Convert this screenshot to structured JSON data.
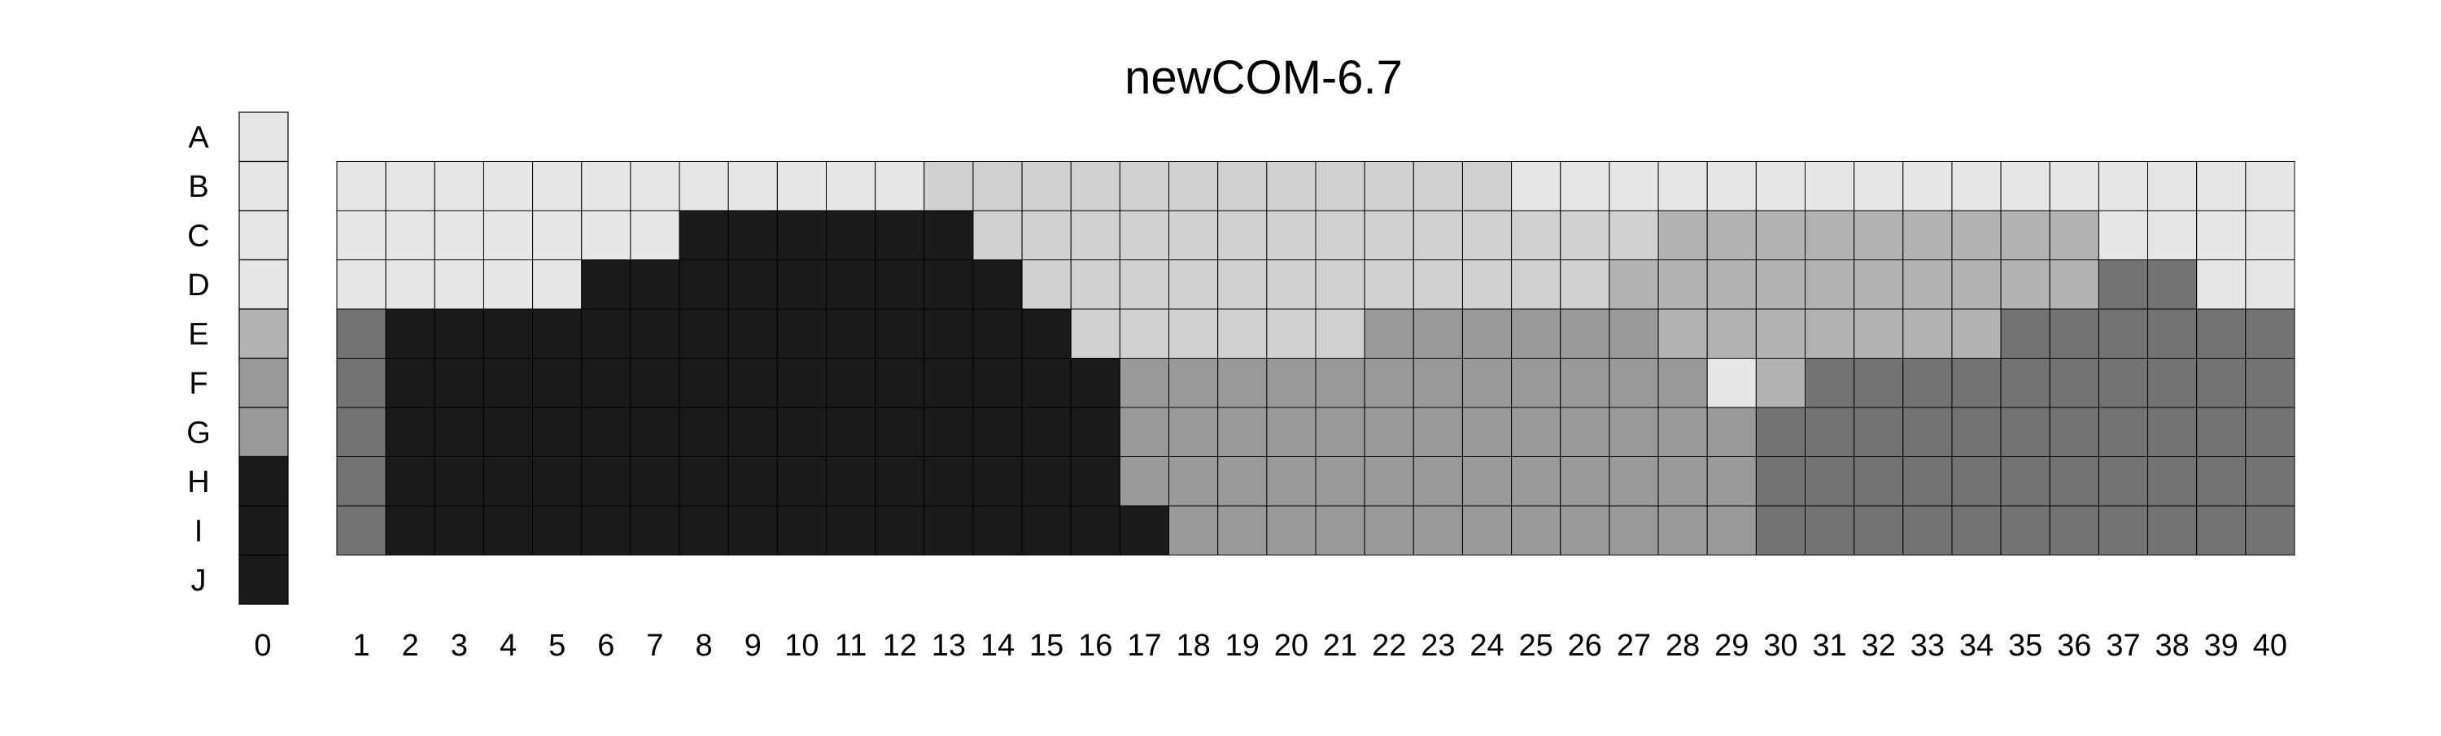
{
  "chart_data": {
    "type": "heatmap",
    "title": "newCOM-6.7",
    "row_labels": [
      "A",
      "B",
      "C",
      "D",
      "E",
      "F",
      "G",
      "H",
      "I",
      "J"
    ],
    "column_labels": [
      "1",
      "2",
      "3",
      "4",
      "5",
      "6",
      "7",
      "8",
      "9",
      "10",
      "11",
      "12",
      "13",
      "14",
      "15",
      "16",
      "17",
      "18",
      "19",
      "20",
      "21",
      "22",
      "23",
      "24",
      "25",
      "26",
      "27",
      "28",
      "29",
      "30",
      "31",
      "32",
      "33",
      "34",
      "35",
      "36",
      "37",
      "38",
      "39",
      "40"
    ],
    "key_column_label": "0",
    "key_column_values": [
      1,
      1,
      1,
      1,
      2,
      3,
      3,
      5,
      5,
      5
    ],
    "palette": {
      "1": "#e6e6e6",
      "2": "#b3b3b3",
      "3": "#999999",
      "4": "#737373",
      "5": "#1a1a1a",
      "6": "#d1d1d1"
    },
    "matrix_rows": [
      "B",
      "C",
      "D",
      "E",
      "F",
      "G",
      "H",
      "I"
    ],
    "values": [
      [
        1,
        1,
        1,
        1,
        1,
        1,
        1,
        1,
        1,
        1,
        1,
        1,
        6,
        6,
        6,
        6,
        6,
        6,
        6,
        6,
        6,
        6,
        6,
        6,
        1,
        1,
        1,
        1,
        1,
        1,
        1,
        1,
        1,
        1,
        1,
        1,
        1,
        1,
        1,
        1
      ],
      [
        1,
        1,
        1,
        1,
        1,
        1,
        1,
        5,
        5,
        5,
        5,
        5,
        5,
        6,
        6,
        6,
        6,
        6,
        6,
        6,
        6,
        6,
        6,
        6,
        6,
        6,
        6,
        2,
        2,
        2,
        2,
        2,
        2,
        2,
        2,
        2,
        1,
        1,
        1,
        1
      ],
      [
        1,
        1,
        1,
        1,
        1,
        5,
        5,
        5,
        5,
        5,
        5,
        5,
        5,
        5,
        6,
        6,
        6,
        6,
        6,
        6,
        6,
        6,
        6,
        6,
        6,
        6,
        2,
        2,
        2,
        2,
        2,
        2,
        2,
        2,
        2,
        2,
        4,
        4,
        1,
        1
      ],
      [
        4,
        5,
        5,
        5,
        5,
        5,
        5,
        5,
        5,
        5,
        5,
        5,
        5,
        5,
        5,
        6,
        6,
        6,
        6,
        6,
        6,
        3,
        3,
        3,
        3,
        3,
        3,
        2,
        2,
        2,
        2,
        2,
        2,
        2,
        4,
        4,
        4,
        4,
        4,
        4
      ],
      [
        4,
        5,
        5,
        5,
        5,
        5,
        5,
        5,
        5,
        5,
        5,
        5,
        5,
        5,
        5,
        5,
        3,
        3,
        3,
        3,
        3,
        3,
        3,
        3,
        3,
        3,
        3,
        3,
        1,
        2,
        4,
        4,
        4,
        4,
        4,
        4,
        4,
        4,
        4,
        4
      ],
      [
        4,
        5,
        5,
        5,
        5,
        5,
        5,
        5,
        5,
        5,
        5,
        5,
        5,
        5,
        5,
        5,
        3,
        3,
        3,
        3,
        3,
        3,
        3,
        3,
        3,
        3,
        3,
        3,
        3,
        4,
        4,
        4,
        4,
        4,
        4,
        4,
        4,
        4,
        4,
        4
      ],
      [
        4,
        5,
        5,
        5,
        5,
        5,
        5,
        5,
        5,
        5,
        5,
        5,
        5,
        5,
        5,
        5,
        3,
        3,
        3,
        3,
        3,
        3,
        3,
        3,
        3,
        3,
        3,
        3,
        3,
        4,
        4,
        4,
        4,
        4,
        4,
        4,
        4,
        4,
        4,
        4
      ],
      [
        4,
        5,
        5,
        5,
        5,
        5,
        5,
        5,
        5,
        5,
        5,
        5,
        5,
        5,
        5,
        5,
        5,
        3,
        3,
        3,
        3,
        3,
        3,
        3,
        3,
        3,
        3,
        3,
        3,
        4,
        4,
        4,
        4,
        4,
        4,
        4,
        4,
        4,
        4,
        4
      ]
    ]
  }
}
